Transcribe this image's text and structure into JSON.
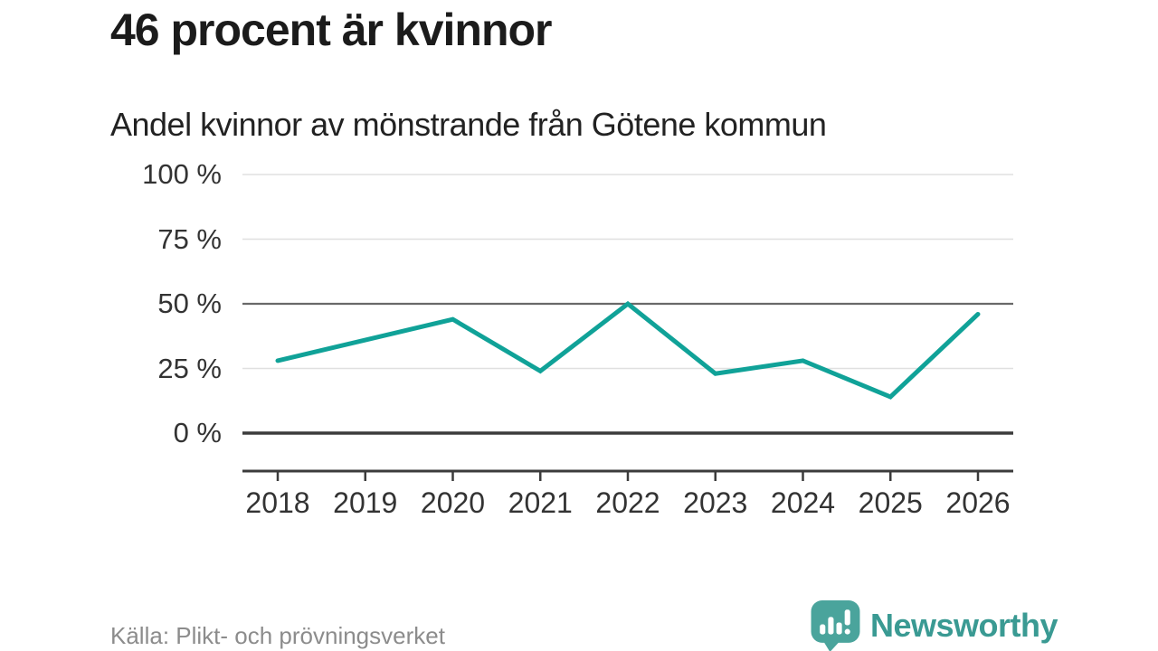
{
  "chart_data": {
    "type": "line",
    "title": "46 procent är kvinnor",
    "subtitle": "Andel kvinnor av mönstrande från Götene kommun",
    "categories": [
      "2018",
      "2019",
      "2020",
      "2021",
      "2022",
      "2023",
      "2024",
      "2025",
      "2026"
    ],
    "series": [
      {
        "name": "Andel kvinnor av mönstrande",
        "values": [
          28,
          36,
          44,
          24,
          50,
          23,
          28,
          14,
          46
        ]
      }
    ],
    "unit": "%",
    "ylim": [
      0,
      100
    ],
    "y_ticks": [
      {
        "value": 0,
        "label": "0 %"
      },
      {
        "value": 25,
        "label": "25 %"
      },
      {
        "value": 50,
        "label": "50 %"
      },
      {
        "value": 75,
        "label": "75 %"
      },
      {
        "value": 100,
        "label": "100 %"
      }
    ],
    "grid": true,
    "legend_position": "none",
    "emphasized_gridline_value": 50,
    "baseline_value": 0,
    "line_color": "#10a298",
    "grid_color": "#e0e0e0",
    "emphasis_grid_color": "#696969",
    "baseline_color": "#3b3b3b",
    "axis_color": "#3b3b3b",
    "tick_label_color": "#333333"
  },
  "footer": {
    "source": "Källa: Plikt- och prövningsverket",
    "brand": {
      "name": "Newsworthy",
      "icon": "speech-bubble-bar-chart-exclamation-icon",
      "icon_color": "#4aa49c",
      "text_color": "#3a9a93"
    }
  }
}
